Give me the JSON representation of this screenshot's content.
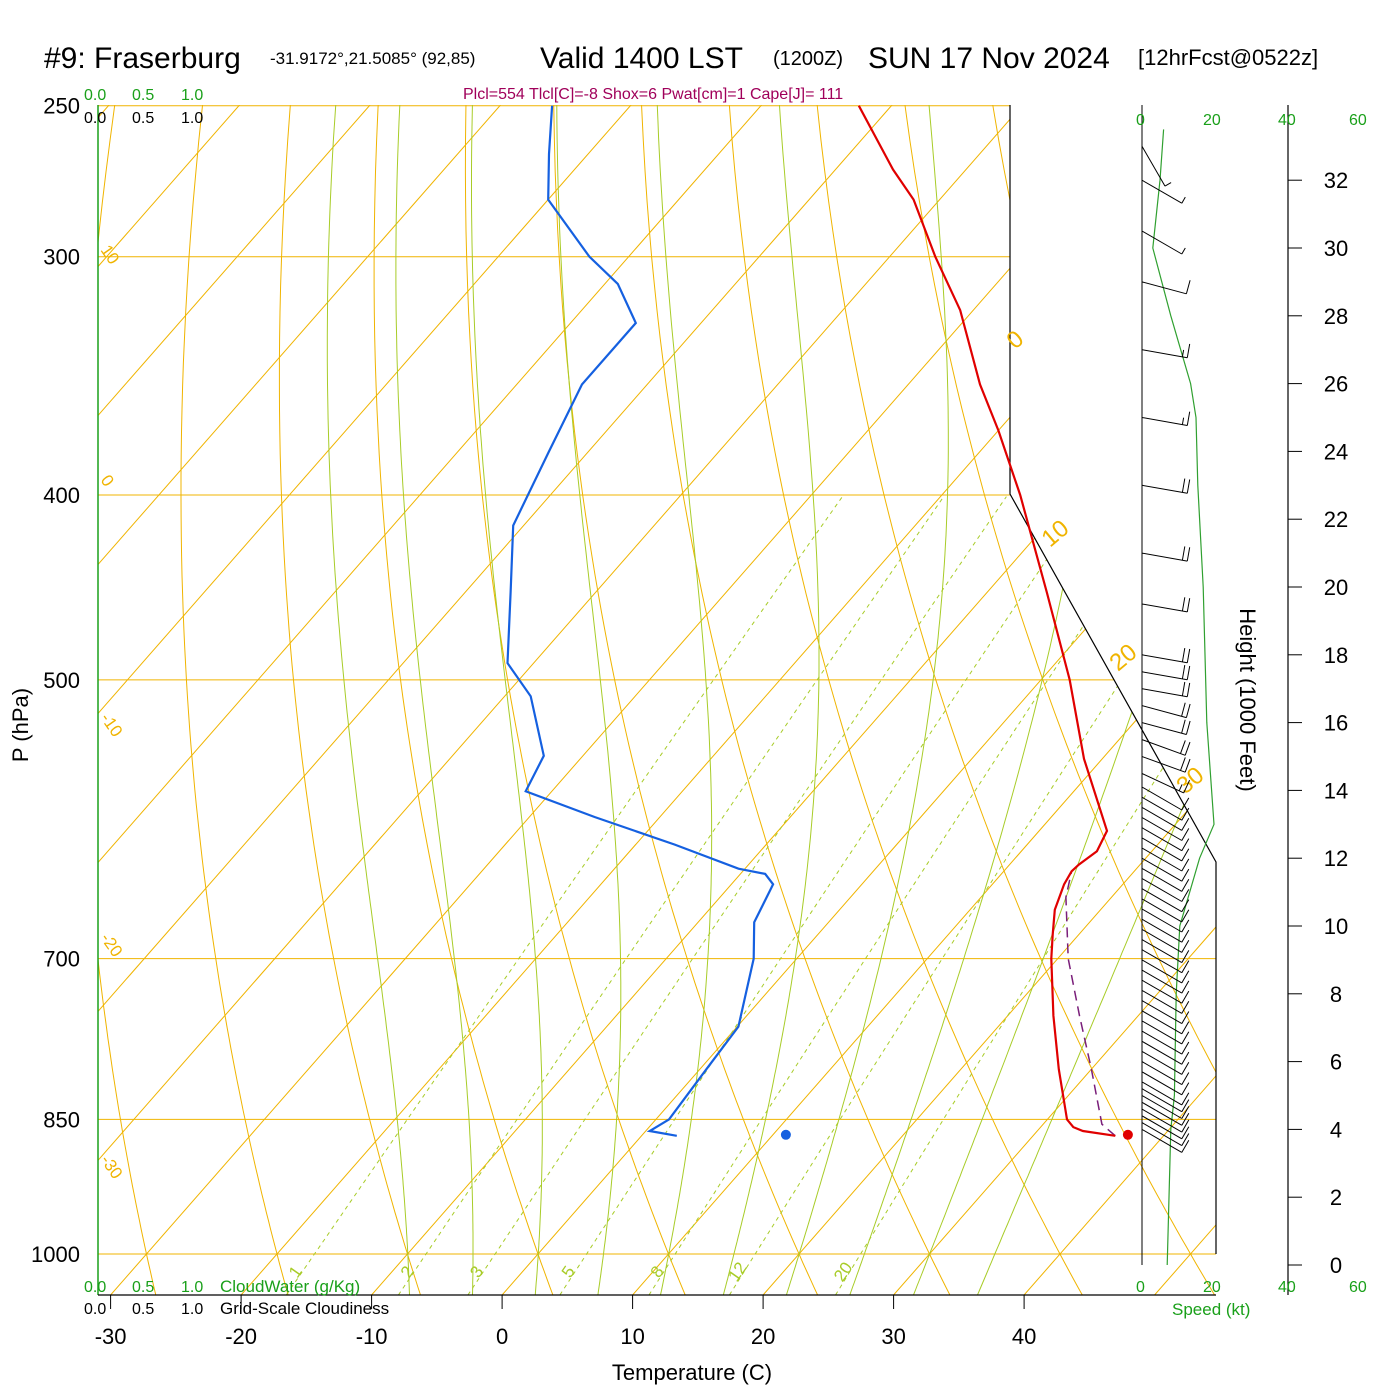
{
  "header": {
    "station": "#9: Fraserburg",
    "coords": "-31.9172°,21.5085° (92,85)",
    "valid": "Valid 1400 LST",
    "zulu": "(1200Z)",
    "date": "SUN 17 Nov 2024",
    "forecast": "[12hrFcst@0522z]",
    "indices": "Plcl=554 Tlcl[C]=-8 Shox=6 Pwat[cm]=1 Cape[J]= 111"
  },
  "colors": {
    "isotherm": "#f0b400",
    "adiabat": "#a8cc28",
    "temperature": "#e00000",
    "dewpoint": "#1560e0",
    "parcel": "#7a1e7a",
    "wind_speed": "#30a030",
    "green_label": "#1aa01a",
    "indices": "#a0005a"
  },
  "cloud_scales": {
    "water_ticks": [
      "0.0",
      "0.5",
      "1.0"
    ],
    "cloudiness_ticks": [
      "0.0",
      "0.5",
      "1.0"
    ],
    "water_label": "CloudWater (g/Kg)",
    "cloudiness_label": "Grid-Scale Cloudiness"
  },
  "speed_axis": {
    "ticks": [
      "0",
      "20",
      "40",
      "60"
    ],
    "label": "Speed (kt)"
  },
  "labels": {
    "t_at_bottom": [
      "1",
      "2",
      "3",
      "5",
      "8",
      "12",
      "20"
    ],
    "isotherm_left": [
      "10",
      "0",
      "-10",
      "-20",
      "-30"
    ],
    "isotherm_right": [
      "0",
      "10",
      "20",
      "30"
    ]
  },
  "chart_data": {
    "type": "skew-t",
    "xlabel": "Temperature (C)",
    "ylabel": "P (hPa)",
    "y2label": "Height (1000 Feet)",
    "x_ticks": [
      -30,
      -20,
      -10,
      0,
      10,
      20,
      30,
      40
    ],
    "pressure_ticks": [
      250,
      300,
      400,
      500,
      700,
      850,
      1000
    ],
    "height_ticks": [
      0,
      2,
      4,
      6,
      8,
      10,
      12,
      14,
      16,
      18,
      20,
      22,
      24,
      26,
      28,
      30,
      32
    ],
    "temperature_profile": [
      [
        867,
        36.3
      ],
      [
        862,
        33.5
      ],
      [
        858,
        32.5
      ],
      [
        850,
        31.5
      ],
      [
        800,
        27.5
      ],
      [
        750,
        23.5
      ],
      [
        700,
        19.5
      ],
      [
        680,
        18
      ],
      [
        660,
        16.5
      ],
      [
        640,
        15.5
      ],
      [
        630,
        15.2
      ],
      [
        625,
        15.3
      ],
      [
        615,
        15.8
      ],
      [
        600,
        15.2
      ],
      [
        550,
        8.6
      ],
      [
        500,
        2.2
      ],
      [
        450,
        -5.4
      ],
      [
        400,
        -14.0
      ],
      [
        370,
        -20.0
      ],
      [
        350,
        -24.5
      ],
      [
        320,
        -31.0
      ],
      [
        300,
        -36.5
      ],
      [
        280,
        -42.0
      ],
      [
        270,
        -45.6
      ],
      [
        250,
        -52.5
      ]
    ],
    "dewpoint_profile": [
      [
        867,
        2.7
      ],
      [
        862,
        0.3
      ],
      [
        850,
        1
      ],
      [
        800,
        0.5
      ],
      [
        760,
        0.1
      ],
      [
        700,
        -3.3
      ],
      [
        670,
        -5.7
      ],
      [
        640,
        -6.8
      ],
      [
        632,
        -8.1
      ],
      [
        628,
        -10.5
      ],
      [
        610,
        -17
      ],
      [
        590,
        -25
      ],
      [
        572,
        -32.0
      ],
      [
        548,
        -33.0
      ],
      [
        510,
        -38.0
      ],
      [
        490,
        -42
      ],
      [
        450,
        -46.5
      ],
      [
        415,
        -50.8
      ],
      [
        380,
        -53
      ],
      [
        350,
        -55
      ],
      [
        325,
        -55
      ],
      [
        310,
        -59
      ],
      [
        300,
        -63
      ],
      [
        280,
        -70
      ],
      [
        265,
        -73
      ],
      [
        250,
        -76
      ]
    ],
    "parcel_profile": [
      [
        867,
        36.3
      ],
      [
        855,
        34.5
      ],
      [
        800,
        30.0
      ],
      [
        750,
        25.5
      ],
      [
        700,
        20.8
      ],
      [
        650,
        16.5
      ],
      [
        630,
        15.2
      ]
    ],
    "surface_markers": {
      "temperature_c": 37.2,
      "dewpoint_c": 11.0,
      "pressure_hpa": 866
    },
    "wind_speed_profile": [
      [
        0,
        7
      ],
      [
        4,
        8
      ],
      [
        5,
        9
      ],
      [
        8,
        9.5
      ],
      [
        10,
        10.5
      ],
      [
        12,
        16
      ],
      [
        13,
        20
      ],
      [
        16,
        18
      ],
      [
        20,
        17
      ],
      [
        23,
        15.5
      ],
      [
        25,
        15
      ],
      [
        26,
        13.5
      ],
      [
        28,
        8
      ],
      [
        30,
        3
      ],
      [
        32,
        5
      ],
      [
        33.5,
        6
      ]
    ],
    "wind_barbs": [
      {
        "h": 4.0,
        "dir": 300,
        "spd": 10
      },
      {
        "h": 4.2,
        "dir": 300,
        "spd": 10
      },
      {
        "h": 4.4,
        "dir": 300,
        "spd": 10
      },
      {
        "h": 4.6,
        "dir": 300,
        "spd": 10
      },
      {
        "h": 4.8,
        "dir": 300,
        "spd": 10
      },
      {
        "h": 5.0,
        "dir": 300,
        "spd": 10
      },
      {
        "h": 5.2,
        "dir": 300,
        "spd": 10
      },
      {
        "h": 5.4,
        "dir": 300,
        "spd": 10
      },
      {
        "h": 5.7,
        "dir": 300,
        "spd": 10
      },
      {
        "h": 6.0,
        "dir": 300,
        "spd": 10
      },
      {
        "h": 6.3,
        "dir": 300,
        "spd": 10
      },
      {
        "h": 6.6,
        "dir": 300,
        "spd": 10
      },
      {
        "h": 6.9,
        "dir": 300,
        "spd": 10
      },
      {
        "h": 7.2,
        "dir": 300,
        "spd": 10
      },
      {
        "h": 7.5,
        "dir": 300,
        "spd": 10
      },
      {
        "h": 7.8,
        "dir": 300,
        "spd": 10
      },
      {
        "h": 8.1,
        "dir": 300,
        "spd": 10
      },
      {
        "h": 8.4,
        "dir": 300,
        "spd": 10
      },
      {
        "h": 8.7,
        "dir": 300,
        "spd": 10
      },
      {
        "h": 9.0,
        "dir": 300,
        "spd": 10
      },
      {
        "h": 9.3,
        "dir": 300,
        "spd": 10
      },
      {
        "h": 9.6,
        "dir": 300,
        "spd": 10
      },
      {
        "h": 9.9,
        "dir": 300,
        "spd": 10
      },
      {
        "h": 10.2,
        "dir": 300,
        "spd": 10
      },
      {
        "h": 10.5,
        "dir": 300,
        "spd": 10
      },
      {
        "h": 10.8,
        "dir": 300,
        "spd": 10
      },
      {
        "h": 11.1,
        "dir": 300,
        "spd": 10
      },
      {
        "h": 11.4,
        "dir": 300,
        "spd": 10
      },
      {
        "h": 11.7,
        "dir": 300,
        "spd": 10
      },
      {
        "h": 12.0,
        "dir": 300,
        "spd": 10
      },
      {
        "h": 12.3,
        "dir": 300,
        "spd": 10
      },
      {
        "h": 12.6,
        "dir": 300,
        "spd": 10
      },
      {
        "h": 12.9,
        "dir": 300,
        "spd": 10
      },
      {
        "h": 13.2,
        "dir": 300,
        "spd": 10
      },
      {
        "h": 13.5,
        "dir": 300,
        "spd": 10
      },
      {
        "h": 13.8,
        "dir": 300,
        "spd": 10
      },
      {
        "h": 14.1,
        "dir": 300,
        "spd": 10
      },
      {
        "h": 14.5,
        "dir": 295,
        "spd": 15
      },
      {
        "h": 15.0,
        "dir": 290,
        "spd": 20
      },
      {
        "h": 15.5,
        "dir": 290,
        "spd": 20
      },
      {
        "h": 16.0,
        "dir": 285,
        "spd": 20
      },
      {
        "h": 16.5,
        "dir": 285,
        "spd": 20
      },
      {
        "h": 17.0,
        "dir": 280,
        "spd": 20
      },
      {
        "h": 17.5,
        "dir": 280,
        "spd": 20
      },
      {
        "h": 18.0,
        "dir": 280,
        "spd": 20
      },
      {
        "h": 19.5,
        "dir": 280,
        "spd": 20
      },
      {
        "h": 21.0,
        "dir": 280,
        "spd": 20
      },
      {
        "h": 23.0,
        "dir": 280,
        "spd": 20
      },
      {
        "h": 25.0,
        "dir": 280,
        "spd": 15
      },
      {
        "h": 27.0,
        "dir": 280,
        "spd": 15
      },
      {
        "h": 29.0,
        "dir": 285,
        "spd": 10
      },
      {
        "h": 30.5,
        "dir": 300,
        "spd": 5
      },
      {
        "h": 32.0,
        "dir": 300,
        "spd": 5
      },
      {
        "h": 33.0,
        "dir": 330,
        "spd": 5
      }
    ]
  }
}
